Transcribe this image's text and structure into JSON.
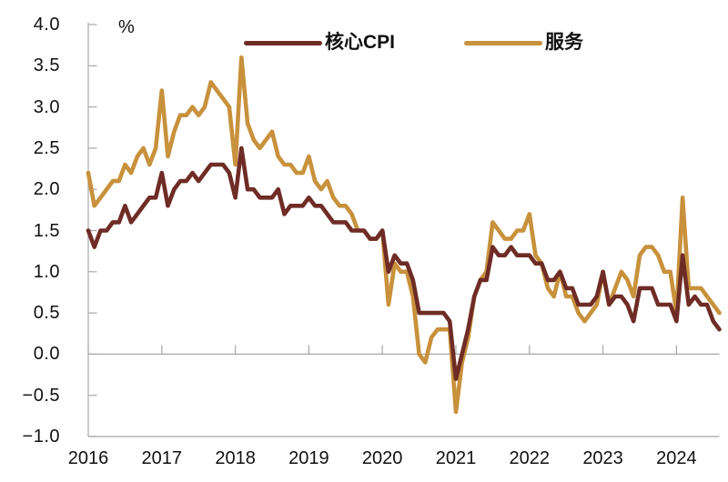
{
  "chart": {
    "unit_label": "%"
  },
  "chart_data": {
    "type": "line",
    "title": "",
    "unit": "%",
    "frequency": "monthly",
    "x_start": "2016-01",
    "x_end": "2024-08",
    "x_tick_labels": [
      "2016",
      "2017",
      "2018",
      "2019",
      "2020",
      "2021",
      "2022",
      "2023",
      "2024"
    ],
    "y_axis": {
      "min": -1.0,
      "max": 4.0,
      "step": 0.5,
      "tick_labels": [
        "4.0",
        "3.5",
        "3.0",
        "2.5",
        "2.0",
        "1.5",
        "1.0",
        "0.5",
        "0.0",
        "−0.5",
        "−1.0"
      ]
    },
    "grid": "zero baseline only",
    "legend_position": "top-center",
    "axis_color": "#a8a8a8",
    "series": [
      {
        "name": "核心CPI",
        "color": "#6F2C26",
        "values": [
          1.5,
          1.3,
          1.5,
          1.5,
          1.6,
          1.6,
          1.8,
          1.6,
          1.7,
          1.8,
          1.9,
          1.9,
          2.2,
          1.8,
          2.0,
          2.1,
          2.1,
          2.2,
          2.1,
          2.2,
          2.3,
          2.3,
          2.3,
          2.2,
          1.9,
          2.5,
          2.0,
          2.0,
          1.9,
          1.9,
          1.9,
          2.0,
          1.7,
          1.8,
          1.8,
          1.8,
          1.9,
          1.8,
          1.8,
          1.7,
          1.6,
          1.6,
          1.6,
          1.5,
          1.5,
          1.5,
          1.4,
          1.4,
          1.5,
          1.0,
          1.2,
          1.1,
          1.1,
          0.9,
          0.5,
          0.5,
          0.5,
          0.5,
          0.5,
          0.4,
          -0.3,
          0.0,
          0.3,
          0.7,
          0.9,
          0.9,
          1.3,
          1.2,
          1.2,
          1.3,
          1.2,
          1.2,
          1.2,
          1.1,
          1.1,
          0.9,
          0.9,
          1.0,
          0.8,
          0.8,
          0.6,
          0.6,
          0.6,
          0.7,
          1.0,
          0.6,
          0.7,
          0.7,
          0.6,
          0.4,
          0.8,
          0.8,
          0.8,
          0.6,
          0.6,
          0.6,
          0.4,
          1.2,
          0.6,
          0.7,
          0.6,
          0.6,
          0.4,
          0.3
        ]
      },
      {
        "name": "服务",
        "color": "#C8913C",
        "values": [
          2.2,
          1.8,
          1.9,
          2.0,
          2.1,
          2.1,
          2.3,
          2.2,
          2.4,
          2.5,
          2.3,
          2.5,
          3.2,
          2.4,
          2.7,
          2.9,
          2.9,
          3.0,
          2.9,
          3.0,
          3.3,
          3.2,
          3.1,
          3.0,
          2.3,
          3.6,
          2.8,
          2.6,
          2.5,
          2.6,
          2.7,
          2.4,
          2.3,
          2.3,
          2.2,
          2.2,
          2.4,
          2.1,
          2.0,
          2.1,
          1.9,
          1.8,
          1.8,
          1.7,
          1.5,
          1.5,
          1.4,
          1.4,
          1.5,
          0.6,
          1.1,
          1.0,
          1.0,
          0.7,
          0.0,
          -0.1,
          0.2,
          0.3,
          0.3,
          0.3,
          -0.7,
          -0.1,
          0.2,
          0.7,
          0.9,
          1.0,
          1.6,
          1.5,
          1.4,
          1.4,
          1.5,
          1.5,
          1.7,
          1.2,
          1.1,
          0.8,
          0.7,
          1.0,
          0.7,
          0.7,
          0.5,
          0.4,
          0.5,
          0.6,
          1.0,
          0.6,
          0.8,
          1.0,
          0.9,
          0.7,
          1.2,
          1.3,
          1.3,
          1.2,
          1.0,
          1.0,
          0.5,
          1.9,
          0.8,
          0.8,
          0.8,
          0.7,
          0.6,
          0.5
        ]
      }
    ]
  }
}
